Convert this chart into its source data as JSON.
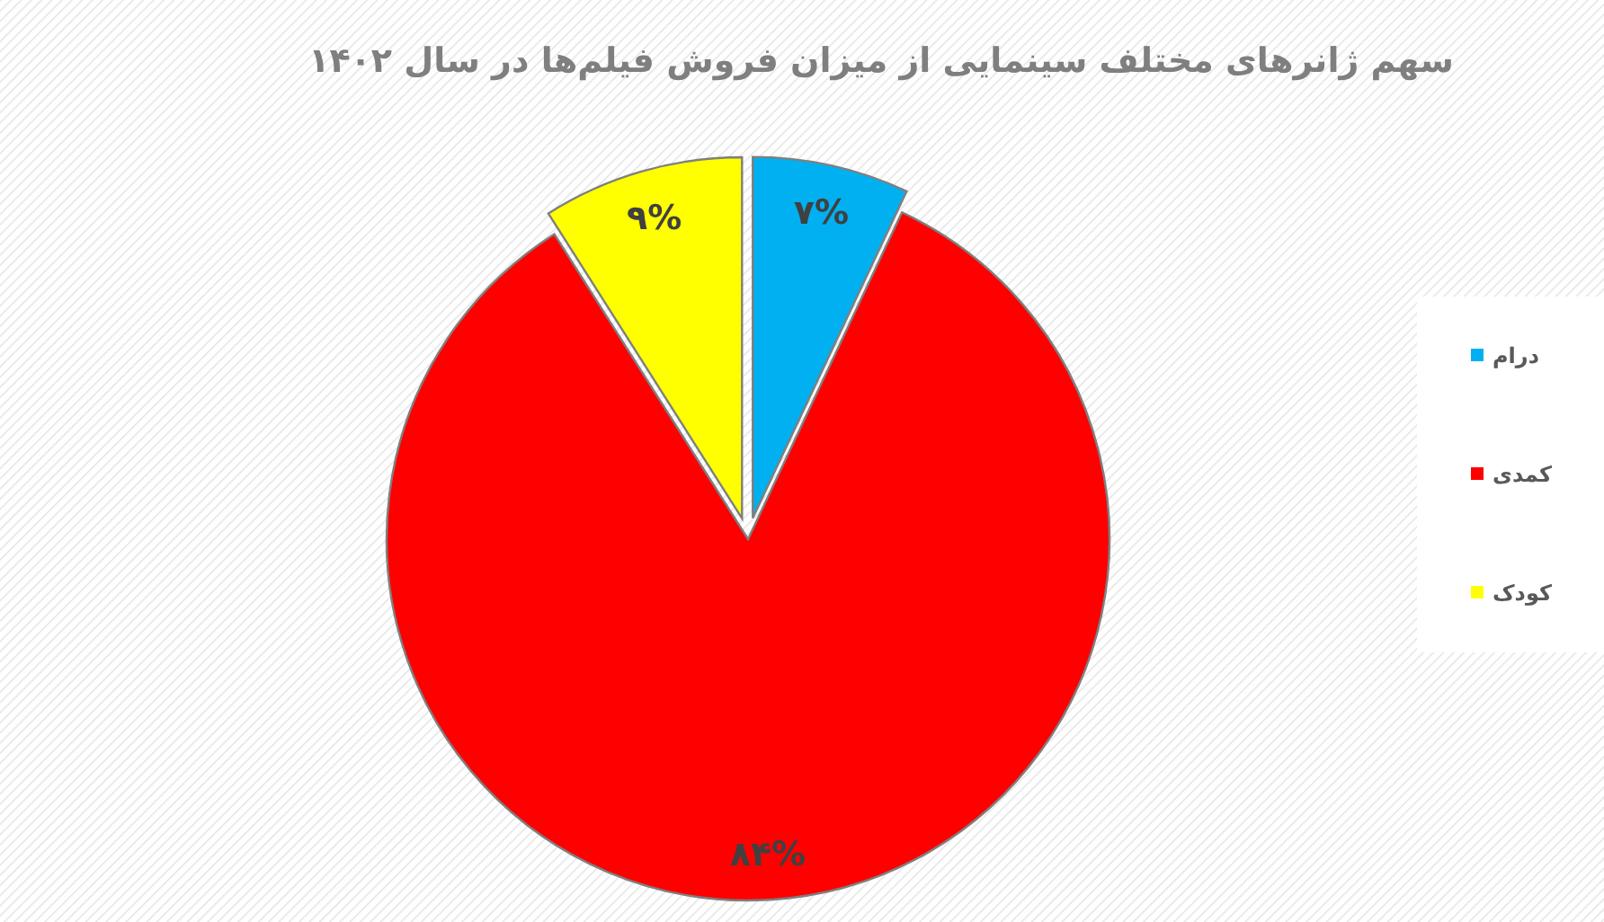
{
  "chart_data": {
    "type": "pie",
    "title": "سهم ژانرهای مختلف سینمایی از میزان فروش فیلم‌ها در سال ۱۴۰۲",
    "categories": [
      "درام",
      "کمدی",
      "کودک"
    ],
    "values": [
      7,
      84,
      9
    ],
    "colors": [
      "#00b0f0",
      "#ff0000",
      "#ffff00"
    ],
    "value_labels": [
      "۷%",
      "۸۴%",
      "۹%"
    ],
    "legend": "right"
  }
}
